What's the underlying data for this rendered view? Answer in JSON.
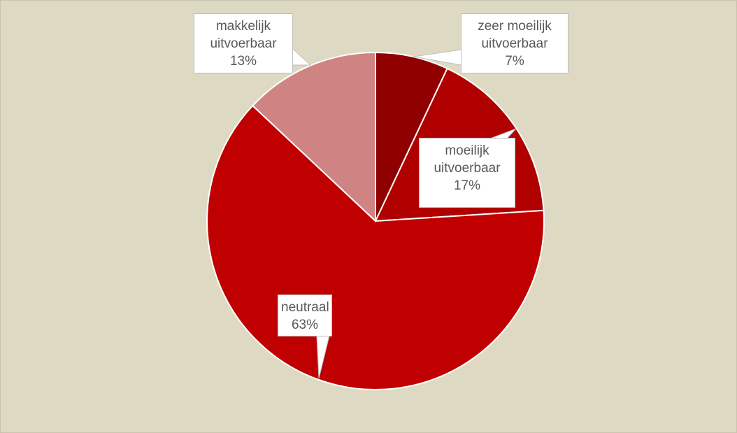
{
  "chart_data": {
    "type": "pie",
    "categories": [
      "zeer moeilijk uitvoerbaar",
      "moeilijk uitvoerbaar",
      "neutraal",
      "makkelijk uitvoerbaar"
    ],
    "values": [
      7,
      17,
      63,
      13
    ],
    "value_labels": [
      "7%",
      "17%",
      "63%",
      "13%"
    ],
    "colors": [
      "#900000",
      "#b00000",
      "#c00000",
      "#d08383"
    ]
  }
}
